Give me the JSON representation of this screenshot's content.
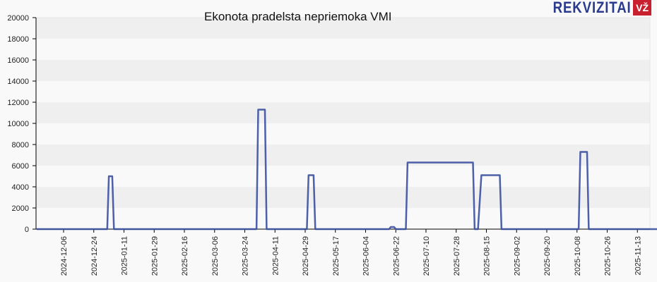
{
  "chart_data": {
    "type": "line",
    "title": "Ekonota pradelsta nepriemoka VMI",
    "xlabel": "",
    "ylabel": "",
    "ylim": [
      0,
      20000
    ],
    "grid": "horizontal alternating bands",
    "legend": "none",
    "y_ticks": [
      "0",
      "2000",
      "4000",
      "6000",
      "8000",
      "10000",
      "12000",
      "14000",
      "16000",
      "18000",
      "20000"
    ],
    "x_ticks": [
      "2024-12-06",
      "2024-12-24",
      "2025-01-11",
      "2025-01-29",
      "2025-02-16",
      "2025-03-06",
      "2025-03-24",
      "2025-04-11",
      "2025-04-29",
      "2025-05-17",
      "2025-06-04",
      "2025-06-22",
      "2025-07-10",
      "2025-07-28",
      "2025-08-15",
      "2025-09-02",
      "2025-09-20",
      "2025-10-08",
      "2025-10-26",
      "2025-11-13"
    ],
    "series": [
      {
        "name": "Ekonota pradelsta nepriemoka VMI",
        "color": "#3a4f9e",
        "points": [
          [
            "2024-11-20",
            0
          ],
          [
            "2025-01-01",
            0
          ],
          [
            "2025-01-02",
            5000
          ],
          [
            "2025-01-04",
            5000
          ],
          [
            "2025-01-05",
            0
          ],
          [
            "2025-03-31",
            0
          ],
          [
            "2025-04-01",
            11300
          ],
          [
            "2025-04-05",
            11300
          ],
          [
            "2025-04-06",
            0
          ],
          [
            "2025-04-30",
            0
          ],
          [
            "2025-05-01",
            5100
          ],
          [
            "2025-05-04",
            5100
          ],
          [
            "2025-05-05",
            0
          ],
          [
            "2025-06-18",
            0
          ],
          [
            "2025-06-19",
            200
          ],
          [
            "2025-06-21",
            200
          ],
          [
            "2025-06-22",
            0
          ],
          [
            "2025-06-28",
            0
          ],
          [
            "2025-06-29",
            6300
          ],
          [
            "2025-08-07",
            6300
          ],
          [
            "2025-08-08",
            0
          ],
          [
            "2025-08-10",
            0
          ],
          [
            "2025-08-12",
            5100
          ],
          [
            "2025-08-23",
            5100
          ],
          [
            "2025-08-24",
            0
          ],
          [
            "2025-10-09",
            0
          ],
          [
            "2025-10-10",
            7300
          ],
          [
            "2025-10-14",
            7300
          ],
          [
            "2025-10-15",
            0
          ],
          [
            "2025-11-26",
            0
          ]
        ]
      }
    ]
  },
  "header": {
    "title": "Ekonota pradelsta nepriemoka VMI",
    "logo_text": "REKVIZITAI",
    "logo_badge": "VŽ"
  }
}
